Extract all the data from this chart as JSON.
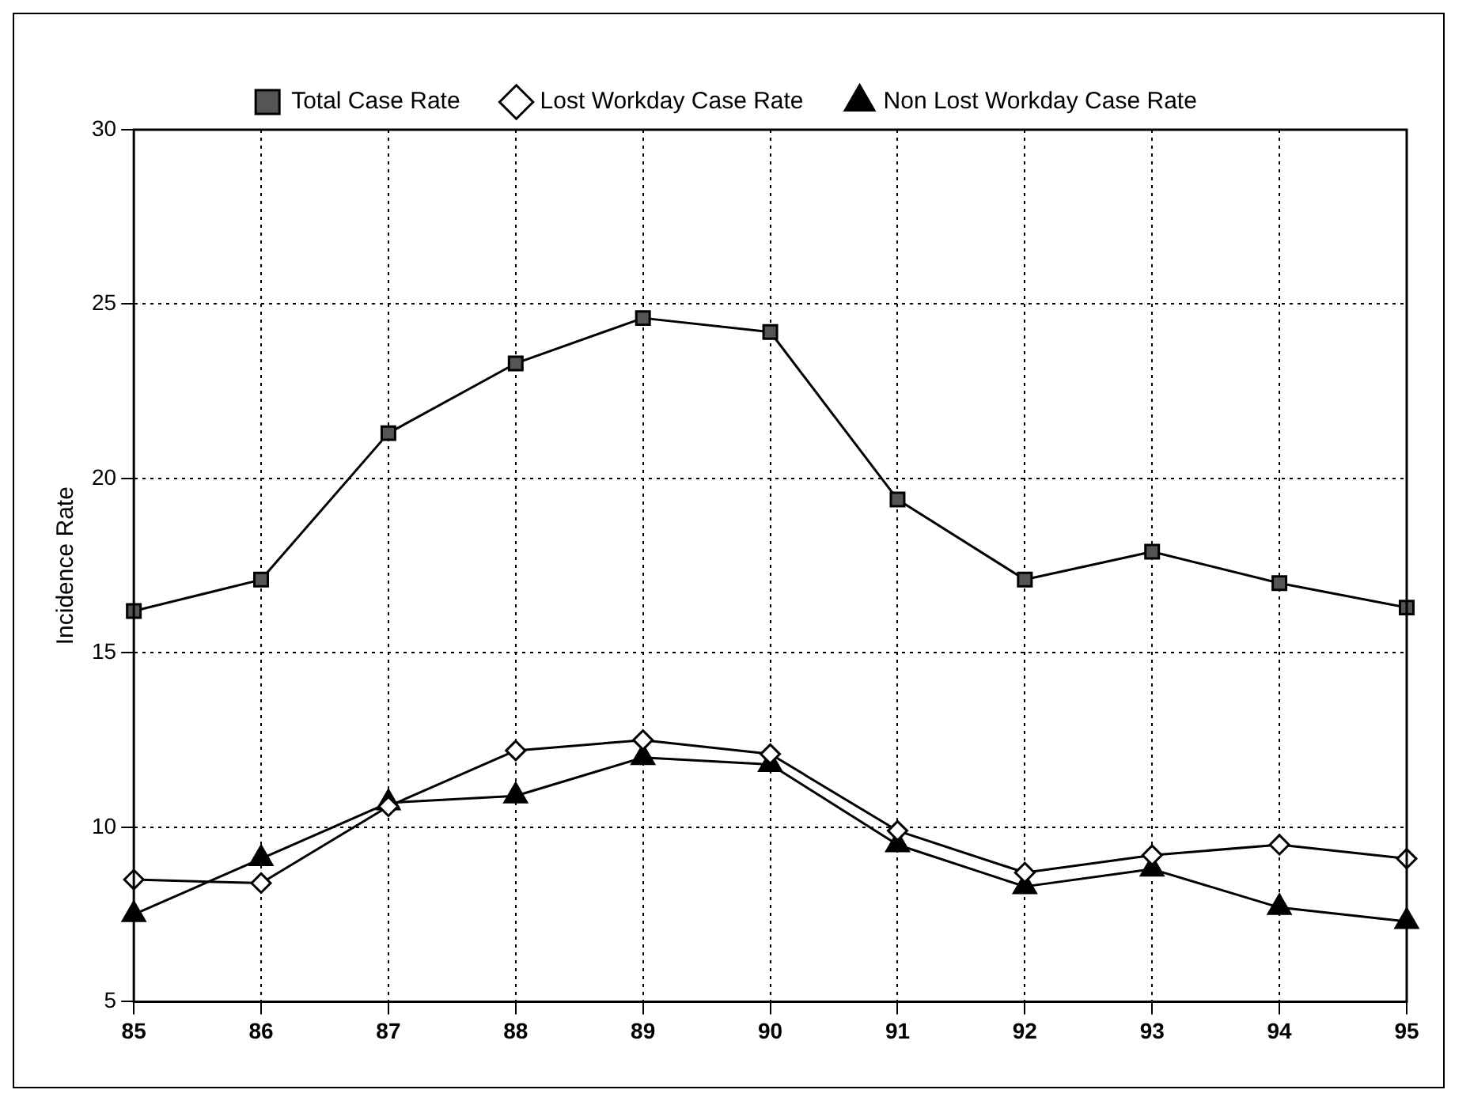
{
  "chart_data": {
    "type": "line",
    "ylabel": "Incidence Rate",
    "categories": [
      "85",
      "86",
      "87",
      "88",
      "89",
      "90",
      "91",
      "92",
      "93",
      "94",
      "95"
    ],
    "series": [
      {
        "name": "Total Case Rate",
        "color": "#000000",
        "marker": "square",
        "values": [
          16.2,
          17.1,
          21.3,
          23.3,
          24.6,
          24.2,
          19.4,
          17.1,
          17.9,
          17.0,
          16.3
        ]
      },
      {
        "name": "Lost Workday Case Rate",
        "color": "#000000",
        "marker": "diamond",
        "values": [
          8.5,
          8.4,
          10.6,
          12.2,
          12.5,
          12.1,
          9.9,
          8.7,
          9.2,
          9.5,
          9.1
        ]
      },
      {
        "name": "Non Lost Workday Case Rate",
        "color": "#000000",
        "marker": "triangle",
        "values": [
          7.5,
          9.1,
          10.7,
          10.9,
          12.0,
          11.8,
          9.5,
          8.3,
          8.8,
          7.7,
          7.3
        ]
      }
    ],
    "ylim": [
      5,
      30
    ],
    "yticks": [
      5,
      10,
      15,
      20,
      25,
      30
    ],
    "grid": true,
    "legend": "top",
    "line_style": "solid"
  }
}
